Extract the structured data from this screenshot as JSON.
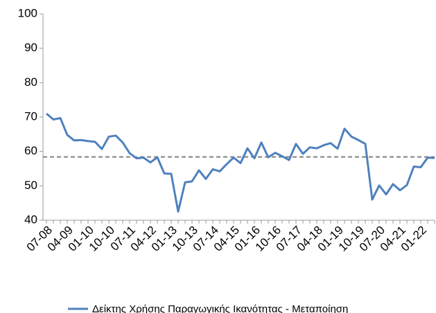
{
  "chart_data": {
    "type": "line",
    "categories": [
      "07-08",
      null,
      null,
      "04-09",
      null,
      null,
      "01-10",
      null,
      null,
      "10-10",
      null,
      null,
      "07-11",
      null,
      null,
      "04-12",
      null,
      null,
      "01-13",
      null,
      null,
      "10-13",
      null,
      null,
      "07-14",
      null,
      null,
      "04-15",
      null,
      null,
      "01-16",
      null,
      null,
      "10-16",
      null,
      null,
      "07-17",
      null,
      null,
      "04-18",
      null,
      null,
      "01-19",
      null,
      null,
      "10-19",
      null,
      null,
      "07-20",
      null,
      null,
      "04-21",
      null,
      null,
      "01-22",
      null,
      null
    ],
    "series": [
      {
        "name": "Δείκτης Χρήσης Παραγωγικής Ικανότητας - Μεταποίηση",
        "color": "#4f81bd",
        "values": [
          71,
          69.3,
          69.7,
          64.8,
          63.2,
          63.3,
          63,
          62.8,
          60.7,
          64.3,
          64.6,
          62.6,
          59.5,
          58,
          58.2,
          56.8,
          58.3,
          53.6,
          53.5,
          42.5,
          51,
          51.3,
          54.5,
          52,
          54.8,
          54.2,
          56.3,
          58.2,
          56.6,
          60.9,
          58,
          62.6,
          58.3,
          59.6,
          58.6,
          57.5,
          62.2,
          59.3,
          61.2,
          60.9,
          61.8,
          62.4,
          60.8,
          66.6,
          64.3,
          63.3,
          62.2,
          46,
          50.1,
          47.5,
          50.5,
          48.7,
          50.2,
          55.6,
          55.4,
          58.2,
          58.1
        ]
      }
    ],
    "average_line": {
      "value": 58.4,
      "color": "#808080"
    },
    "ylim": [
      40,
      100
    ],
    "yticks": [
      40,
      50,
      60,
      70,
      80,
      90,
      100
    ],
    "grid": false,
    "legend": "bottom"
  }
}
